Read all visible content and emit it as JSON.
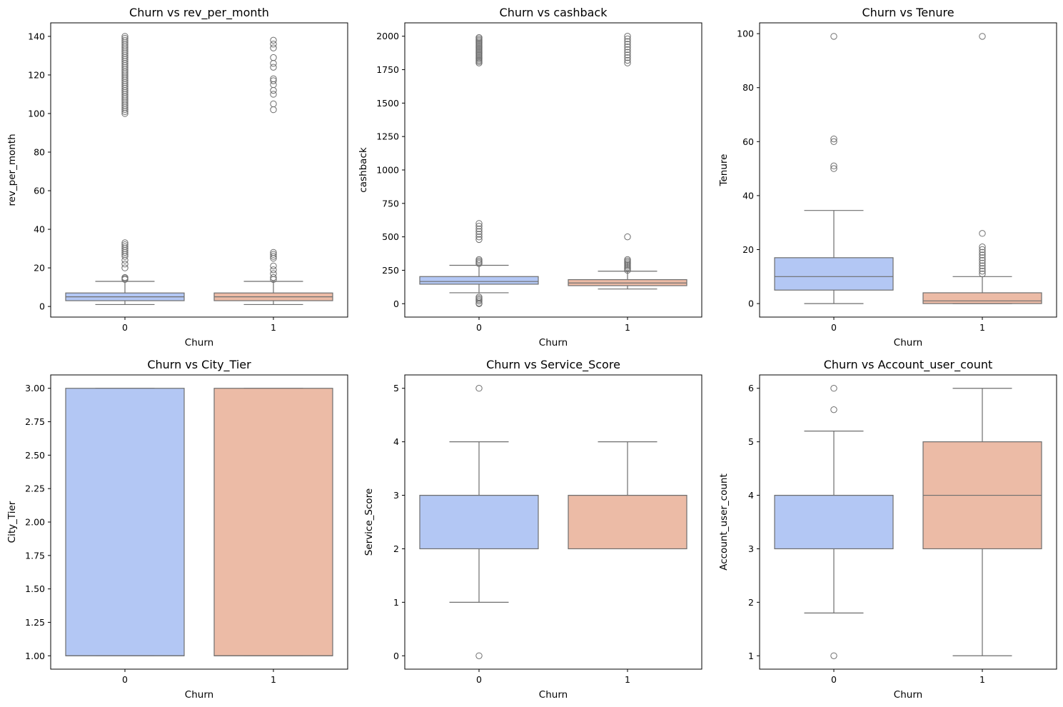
{
  "colors": {
    "class0": "#b3c7f4",
    "class1": "#ecbba6",
    "line": "#6e6e6e",
    "axis": "#000000"
  },
  "chart_data": [
    {
      "type": "box",
      "title": "Churn vs rev_per_month",
      "xlabel": "Churn",
      "ylabel": "rev_per_month",
      "categories": [
        "0",
        "1"
      ],
      "ylim": [
        -5.5,
        147
      ],
      "yticks": [
        0,
        20,
        40,
        60,
        80,
        100,
        120,
        140
      ],
      "ytick_labels": [
        "0",
        "20",
        "40",
        "60",
        "80",
        "100",
        "120",
        "140"
      ],
      "boxes": [
        {
          "q1": 3,
          "median": 5,
          "q3": 7,
          "whisker_low": 1,
          "whisker_high": 13,
          "outliers": [
            14,
            14.5,
            15,
            20,
            22,
            24,
            26,
            27,
            28,
            29,
            30,
            31,
            32,
            33,
            100,
            101,
            102,
            103,
            104,
            105,
            106,
            107,
            108,
            109,
            110,
            111,
            112,
            113,
            114,
            115,
            116,
            117,
            118,
            119,
            120,
            121,
            122,
            123,
            124,
            125,
            126,
            127,
            128,
            129,
            130,
            131,
            132,
            133,
            134,
            135,
            136,
            137,
            138,
            139,
            140
          ]
        },
        {
          "q1": 3,
          "median": 5,
          "q3": 7,
          "whisker_low": 1,
          "whisker_high": 13,
          "outliers": [
            14,
            15,
            17,
            19,
            21,
            25,
            26,
            27,
            28,
            102,
            105,
            110,
            112,
            115,
            117,
            118,
            124,
            126,
            129,
            134,
            136,
            138
          ]
        }
      ]
    },
    {
      "type": "box",
      "title": "Churn vs cashback",
      "xlabel": "Churn",
      "ylabel": "cashback",
      "categories": [
        "0",
        "1"
      ],
      "ylim": [
        -100,
        2100
      ],
      "yticks": [
        0,
        250,
        500,
        750,
        1000,
        1250,
        1500,
        1750,
        2000
      ],
      "ytick_labels": [
        "0",
        "250",
        "500",
        "750",
        "1000",
        "1250",
        "1500",
        "1750",
        "2000"
      ],
      "boxes": [
        {
          "q1": 146,
          "median": 166,
          "q3": 203,
          "whisker_low": 82,
          "whisker_high": 287,
          "outliers": [
            0,
            5,
            20,
            30,
            40,
            50,
            300,
            310,
            320,
            330,
            480,
            500,
            520,
            540,
            560,
            580,
            600,
            1800,
            1810,
            1820,
            1830,
            1840,
            1850,
            1860,
            1870,
            1880,
            1890,
            1900,
            1910,
            1920,
            1930,
            1940,
            1950,
            1960,
            1970,
            1980,
            1990
          ]
        },
        {
          "q1": 135,
          "median": 155,
          "q3": 180,
          "whisker_low": 110,
          "whisker_high": 243,
          "outliers": [
            250,
            260,
            270,
            280,
            290,
            300,
            310,
            320,
            330,
            500,
            1800,
            1820,
            1840,
            1860,
            1880,
            1900,
            1920,
            1940,
            1960,
            1980,
            2000
          ]
        }
      ]
    },
    {
      "type": "box",
      "title": "Churn vs Tenure",
      "xlabel": "Churn",
      "ylabel": "Tenure",
      "categories": [
        "0",
        "1"
      ],
      "ylim": [
        -5,
        104
      ],
      "yticks": [
        0,
        20,
        40,
        60,
        80,
        100
      ],
      "ytick_labels": [
        "0",
        "20",
        "40",
        "60",
        "80",
        "100"
      ],
      "boxes": [
        {
          "q1": 5,
          "median": 10,
          "q3": 17,
          "whisker_low": 0,
          "whisker_high": 34.5,
          "outliers": [
            50,
            51,
            60,
            61,
            99
          ]
        },
        {
          "q1": 0,
          "median": 1,
          "q3": 4,
          "whisker_low": 0,
          "whisker_high": 10,
          "outliers": [
            11,
            12,
            13,
            14,
            15,
            16,
            17,
            18,
            19,
            20,
            21,
            26,
            99
          ]
        }
      ]
    },
    {
      "type": "box",
      "title": "Churn vs City_Tier",
      "xlabel": "Churn",
      "ylabel": "City_Tier",
      "categories": [
        "0",
        "1"
      ],
      "ylim": [
        0.9,
        3.1
      ],
      "yticks": [
        1.0,
        1.25,
        1.5,
        1.75,
        2.0,
        2.25,
        2.5,
        2.75,
        3.0
      ],
      "ytick_labels": [
        "1.00",
        "1.25",
        "1.50",
        "1.75",
        "2.00",
        "2.25",
        "2.50",
        "2.75",
        "3.00"
      ],
      "boxes": [
        {
          "q1": 1,
          "median": 1,
          "q3": 3,
          "whisker_low": 1,
          "whisker_high": 3,
          "outliers": []
        },
        {
          "q1": 1,
          "median": 1,
          "q3": 3,
          "whisker_low": 1,
          "whisker_high": 3,
          "outliers": []
        }
      ]
    },
    {
      "type": "box",
      "title": "Churn vs Service_Score",
      "xlabel": "Churn",
      "ylabel": "Service_Score",
      "categories": [
        "0",
        "1"
      ],
      "ylim": [
        -0.25,
        5.25
      ],
      "yticks": [
        0,
        1,
        2,
        3,
        4,
        5
      ],
      "ytick_labels": [
        "0",
        "1",
        "2",
        "3",
        "4",
        "5"
      ],
      "boxes": [
        {
          "q1": 2,
          "median": 3,
          "q3": 3,
          "whisker_low": 1,
          "whisker_high": 4,
          "outliers": [
            0,
            5
          ]
        },
        {
          "q1": 2,
          "median": 3,
          "q3": 3,
          "whisker_low": 2,
          "whisker_high": 4,
          "outliers": []
        }
      ]
    },
    {
      "type": "box",
      "title": "Churn vs Account_user_count",
      "xlabel": "Churn",
      "ylabel": "Account_user_count",
      "categories": [
        "0",
        "1"
      ],
      "ylim": [
        0.75,
        6.25
      ],
      "yticks": [
        1,
        2,
        3,
        4,
        5,
        6
      ],
      "ytick_labels": [
        "1",
        "2",
        "3",
        "4",
        "5",
        "6"
      ],
      "boxes": [
        {
          "q1": 3,
          "median": 4,
          "q3": 4,
          "whisker_low": 1.8,
          "whisker_high": 5.2,
          "outliers": [
            1,
            5.6,
            6
          ]
        },
        {
          "q1": 3,
          "median": 4,
          "q3": 5,
          "whisker_low": 1,
          "whisker_high": 6,
          "outliers": []
        }
      ]
    }
  ]
}
